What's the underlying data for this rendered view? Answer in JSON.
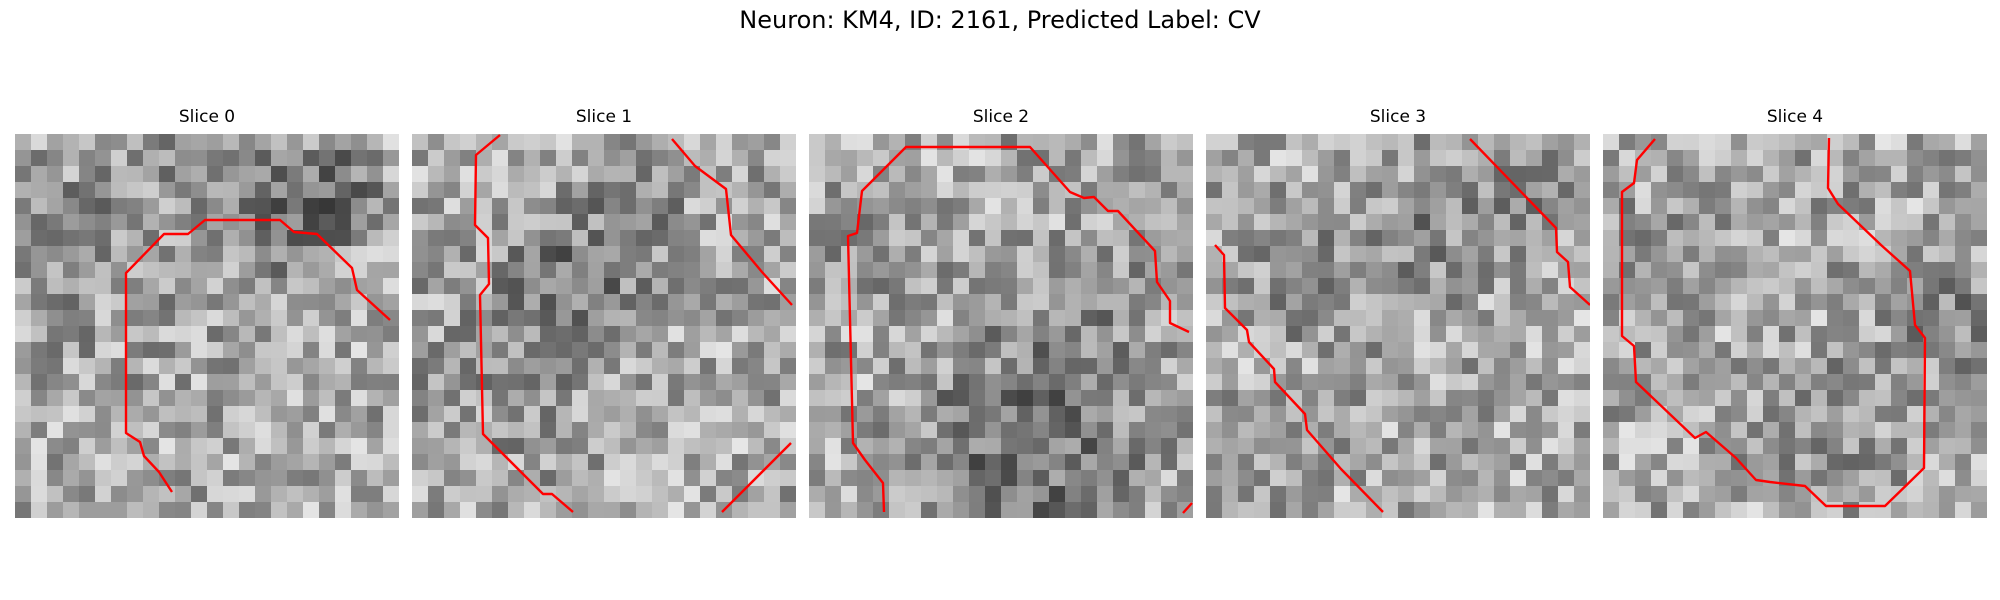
{
  "figure": {
    "title": "Neuron: KM4, ID: 2161, Predicted Label: CV"
  },
  "colors": {
    "contour": "#ff0000",
    "colormap": "gray"
  },
  "panels": [
    {
      "title": "Slice 0"
    },
    {
      "title": "Slice 1"
    },
    {
      "title": "Slice 2"
    },
    {
      "title": "Slice 3"
    },
    {
      "title": "Slice 4"
    }
  ]
}
